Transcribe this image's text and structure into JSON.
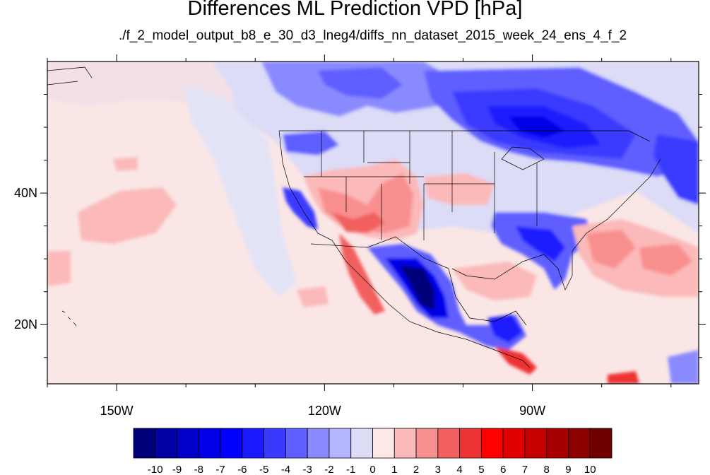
{
  "title": "Differences ML Prediction VPD [hPa]",
  "subtitle": "./f_2_model_output_b8_e_30_d3_lneg4/diffs_nn_dataset_2015_week_24_ens_4_f_2",
  "map": {
    "lon_range": [
      -160,
      -66
    ],
    "lat_range": [
      11,
      60
    ],
    "lon_ticks": [
      {
        "value": -150,
        "label": "150W"
      },
      {
        "value": -120,
        "label": "120W"
      },
      {
        "value": -90,
        "label": "90W"
      }
    ],
    "lat_ticks": [
      {
        "value": 40,
        "label": "40N"
      },
      {
        "value": 20,
        "label": "20N"
      }
    ],
    "background_color": "#fbe6e6"
  },
  "colorbar": {
    "labels": [
      "-10",
      "-9",
      "-8",
      "-7",
      "-6",
      "-5",
      "-4",
      "-3",
      "-2",
      "-1",
      "0",
      "1",
      "2",
      "3",
      "4",
      "5",
      "6",
      "7",
      "8",
      "9",
      "10"
    ],
    "colors": [
      "#00007a",
      "#0000a3",
      "#0000c8",
      "#0000e8",
      "#0000ff",
      "#1a1aff",
      "#3a3aff",
      "#5f5fff",
      "#8a8aff",
      "#b5b5ff",
      "#dcdcf7",
      "#fde7e7",
      "#fbb9b9",
      "#f88f8f",
      "#f25f5f",
      "#ee3333",
      "#ff0000",
      "#e00000",
      "#c40000",
      "#a80000",
      "#8c0000",
      "#700000"
    ]
  }
}
